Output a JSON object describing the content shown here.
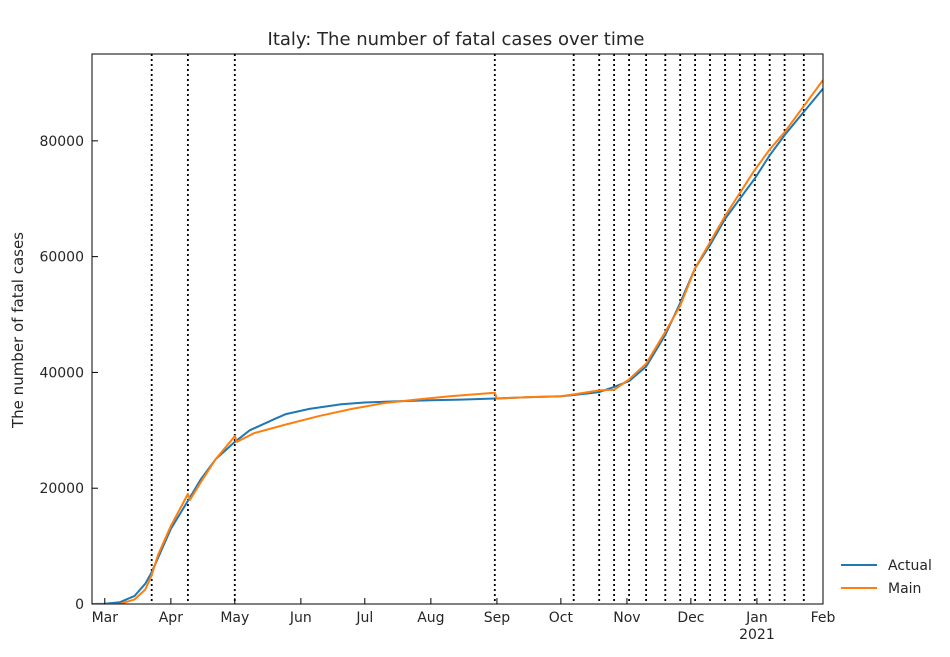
{
  "chart_data": {
    "type": "line",
    "title": "Italy: The number of fatal cases over time",
    "xlabel": "",
    "ylabel": "The number of fatal cases",
    "x_range": [
      "2020-02-24",
      "2021-02-01"
    ],
    "ylim": [
      0,
      95000
    ],
    "x_ticks": [
      {
        "date": "2020-03-01",
        "label": "Mar"
      },
      {
        "date": "2020-04-01",
        "label": "Apr"
      },
      {
        "date": "2020-05-01",
        "label": "May"
      },
      {
        "date": "2020-06-01",
        "label": "Jun"
      },
      {
        "date": "2020-07-01",
        "label": "Jul"
      },
      {
        "date": "2020-08-01",
        "label": "Aug"
      },
      {
        "date": "2020-09-01",
        "label": "Sep"
      },
      {
        "date": "2020-10-01",
        "label": "Oct"
      },
      {
        "date": "2020-11-01",
        "label": "Nov"
      },
      {
        "date": "2020-12-01",
        "label": "Dec"
      },
      {
        "date": "2021-01-01",
        "label": "Jan",
        "sublabel": "2021"
      },
      {
        "date": "2021-02-01",
        "label": "Feb"
      }
    ],
    "y_ticks": [
      0,
      20000,
      40000,
      60000,
      80000
    ],
    "y_tick_labels": [
      "0",
      "20000",
      "40000",
      "60000",
      "80000"
    ],
    "change_dates": [
      "2020-03-23",
      "2020-04-09",
      "2020-05-01",
      "2020-08-31",
      "2020-10-07",
      "2020-10-19",
      "2020-10-26",
      "2020-11-02",
      "2020-11-10",
      "2020-11-19",
      "2020-11-26",
      "2020-12-03",
      "2020-12-10",
      "2020-12-17",
      "2020-12-24",
      "2020-12-31",
      "2021-01-07",
      "2021-01-14",
      "2021-01-23"
    ],
    "series": [
      {
        "name": "Actual",
        "color": "#1f77b4",
        "points": [
          [
            "2020-02-24",
            0
          ],
          [
            "2020-03-01",
            30
          ],
          [
            "2020-03-08",
            300
          ],
          [
            "2020-03-15",
            1400
          ],
          [
            "2020-03-20",
            3500
          ],
          [
            "2020-03-23",
            5500
          ],
          [
            "2020-03-26",
            8000
          ],
          [
            "2020-04-01",
            13000
          ],
          [
            "2020-04-09",
            17800
          ],
          [
            "2020-04-15",
            21500
          ],
          [
            "2020-04-22",
            25000
          ],
          [
            "2020-05-01",
            28000
          ],
          [
            "2020-05-08",
            30000
          ],
          [
            "2020-05-20",
            32000
          ],
          [
            "2020-05-25",
            32800
          ],
          [
            "2020-06-05",
            33700
          ],
          [
            "2020-06-20",
            34500
          ],
          [
            "2020-07-01",
            34800
          ],
          [
            "2020-07-15",
            35000
          ],
          [
            "2020-08-01",
            35200
          ],
          [
            "2020-08-15",
            35300
          ],
          [
            "2020-08-31",
            35500
          ],
          [
            "2020-09-15",
            35700
          ],
          [
            "2020-10-01",
            35900
          ],
          [
            "2020-10-07",
            36100
          ],
          [
            "2020-10-19",
            36600
          ],
          [
            "2020-10-26",
            37500
          ],
          [
            "2020-11-02",
            38500
          ],
          [
            "2020-11-10",
            41000
          ],
          [
            "2020-11-19",
            46500
          ],
          [
            "2020-11-26",
            52000
          ],
          [
            "2020-12-03",
            58000
          ],
          [
            "2020-12-10",
            62000
          ],
          [
            "2020-12-17",
            66500
          ],
          [
            "2020-12-24",
            70000
          ],
          [
            "2020-12-31",
            73500
          ],
          [
            "2021-01-07",
            77500
          ],
          [
            "2021-01-14",
            81000
          ],
          [
            "2021-01-23",
            85000
          ],
          [
            "2021-02-01",
            89000
          ]
        ]
      },
      {
        "name": "Main",
        "color": "#ff7f0e",
        "points": [
          [
            "2020-02-24",
            0
          ],
          [
            "2020-03-01",
            0
          ],
          [
            "2020-03-08",
            0
          ],
          [
            "2020-03-15",
            800
          ],
          [
            "2020-03-20",
            2500
          ],
          [
            "2020-03-23",
            5000
          ],
          [
            "2020-03-26",
            8500
          ],
          [
            "2020-04-01",
            13500
          ],
          [
            "2020-04-09",
            19000
          ],
          [
            "2020-04-10",
            18000
          ],
          [
            "2020-04-15",
            21000
          ],
          [
            "2020-04-22",
            25000
          ],
          [
            "2020-05-01",
            29000
          ],
          [
            "2020-05-02",
            28000
          ],
          [
            "2020-05-10",
            29500
          ],
          [
            "2020-05-25",
            31000
          ],
          [
            "2020-06-10",
            32500
          ],
          [
            "2020-06-25",
            33700
          ],
          [
            "2020-07-10",
            34700
          ],
          [
            "2020-07-25",
            35300
          ],
          [
            "2020-08-10",
            35900
          ],
          [
            "2020-08-31",
            36500
          ],
          [
            "2020-09-01",
            35500
          ],
          [
            "2020-09-15",
            35700
          ],
          [
            "2020-10-01",
            35900
          ],
          [
            "2020-10-07",
            36200
          ],
          [
            "2020-10-19",
            36900
          ],
          [
            "2020-10-26",
            37000
          ],
          [
            "2020-11-02",
            38800
          ],
          [
            "2020-11-10",
            41500
          ],
          [
            "2020-11-19",
            47000
          ],
          [
            "2020-11-26",
            51500
          ],
          [
            "2020-12-03",
            58000
          ],
          [
            "2020-12-10",
            62500
          ],
          [
            "2020-12-17",
            67000
          ],
          [
            "2020-12-24",
            71000
          ],
          [
            "2020-12-31",
            75000
          ],
          [
            "2021-01-07",
            78500
          ],
          [
            "2021-01-14",
            81500
          ],
          [
            "2021-01-23",
            86000
          ],
          [
            "2021-02-01",
            90500
          ]
        ]
      }
    ],
    "legend": {
      "placement": "outside-lower-right"
    },
    "grid": false
  }
}
